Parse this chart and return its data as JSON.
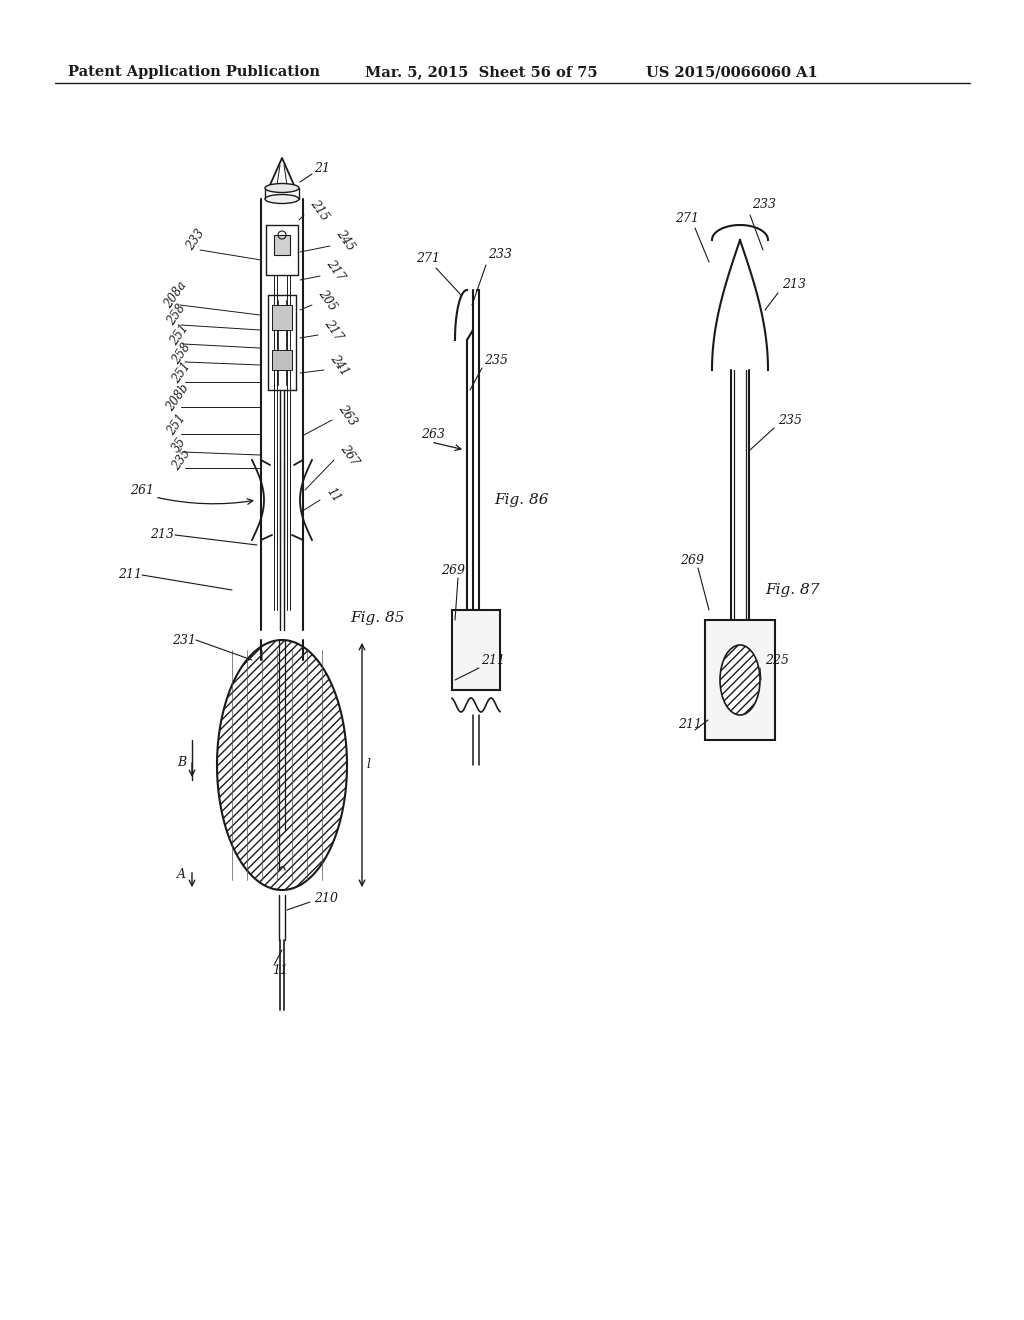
{
  "background_color": "#ffffff",
  "header_left": "Patent Application Publication",
  "header_mid": "Mar. 5, 2015  Sheet 56 of 75",
  "header_right": "US 2015/0066060 A1",
  "header_fontsize": 10.5,
  "line_color": "#1a1a1a",
  "text_color": "#1a1a1a"
}
